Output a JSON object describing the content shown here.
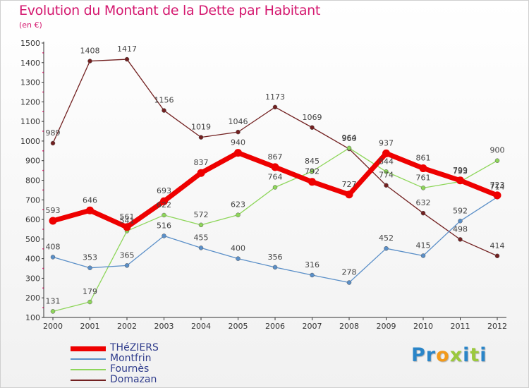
{
  "header": {
    "title": "Evolution du Montant de la Dette par Habitant",
    "subtitle": "(en €)"
  },
  "chart_data": {
    "type": "line",
    "title": "Evolution du Montant de la Dette par Habitant",
    "ylabel": "(en €)",
    "xlabel": "",
    "x": [
      "2000",
      "2001",
      "2002",
      "2003",
      "2004",
      "2005",
      "2006",
      "2007",
      "2008",
      "2009",
      "2010",
      "2011",
      "2012"
    ],
    "yticks": [
      100,
      200,
      300,
      400,
      500,
      600,
      700,
      800,
      900,
      1000,
      1100,
      1200,
      1300,
      1400,
      1500
    ],
    "ylim": [
      100,
      1500
    ],
    "grid": false,
    "legend_position": "bottom-left",
    "series": [
      {
        "name": "THéZIERS",
        "color": "#ee0000",
        "values": [
          593,
          646,
          561,
          693,
          837,
          940,
          867,
          792,
          727,
          937,
          861,
          799,
          723
        ]
      },
      {
        "name": "Montfrin",
        "color": "#5a8fc8",
        "values": [
          408,
          353,
          365,
          516,
          455,
          400,
          356,
          316,
          278,
          452,
          415,
          592,
          714
        ]
      },
      {
        "name": "Fournès",
        "color": "#8ed65a",
        "values": [
          131,
          179,
          541,
          622,
          572,
          623,
          764,
          845,
          964,
          844,
          761,
          793,
          900
        ]
      },
      {
        "name": "Domazan",
        "color": "#722020",
        "values": [
          989,
          1408,
          1417,
          1156,
          1019,
          1046,
          1173,
          1069,
          960,
          774,
          632,
          498,
          414
        ]
      }
    ]
  },
  "logo": {
    "letters": [
      "P",
      "r",
      "o",
      "x",
      "i",
      "t",
      "i"
    ],
    "colors": [
      "#2a85c8",
      "#2a85c8",
      "#f29a1b",
      "#9bc93c",
      "#2a85c8",
      "#9bc93c",
      "#2a85c8"
    ]
  }
}
